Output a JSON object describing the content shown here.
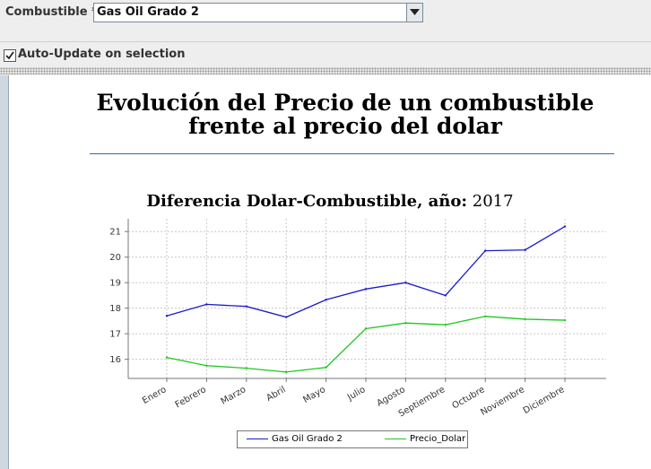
{
  "toolbar": {
    "combo_label": "Combustible *",
    "combo_value": "Gas Oil Grado 2",
    "checkbox_label": "Auto-Update on selection",
    "checkbox_checked": true
  },
  "panel": {
    "title": "Evolución del Precio de un combustible frente al precio del dolar",
    "chart_title_prefix": "Diferencia Dolar-Combustible, año:",
    "chart_title_year": "2017"
  },
  "chart_data": {
    "type": "line",
    "title": "Diferencia Dolar-Combustible, año:  2017",
    "xlabel": "",
    "ylabel": "",
    "categories": [
      "Enero",
      "Febrero",
      "Marzo",
      "Abril",
      "Mayo",
      "Julio",
      "Agosto",
      "Septiembre",
      "Octubre",
      "Noviembre",
      "Diciembre"
    ],
    "yticks": [
      16,
      17,
      18,
      19,
      20,
      21
    ],
    "ylim": [
      15.25,
      21.5
    ],
    "grid": true,
    "legend_position": "bottom",
    "series": [
      {
        "name": "Gas Oil Grado 2",
        "color": "#1c1cc8",
        "values": [
          17.7,
          18.15,
          18.07,
          17.65,
          18.33,
          18.75,
          19.0,
          18.5,
          20.25,
          20.28,
          21.2
        ]
      },
      {
        "name": "Precio_Dolar",
        "color": "#1ec81e",
        "values": [
          16.07,
          15.75,
          15.65,
          15.5,
          15.68,
          17.2,
          17.42,
          17.35,
          17.68,
          17.57,
          17.53
        ]
      }
    ]
  }
}
